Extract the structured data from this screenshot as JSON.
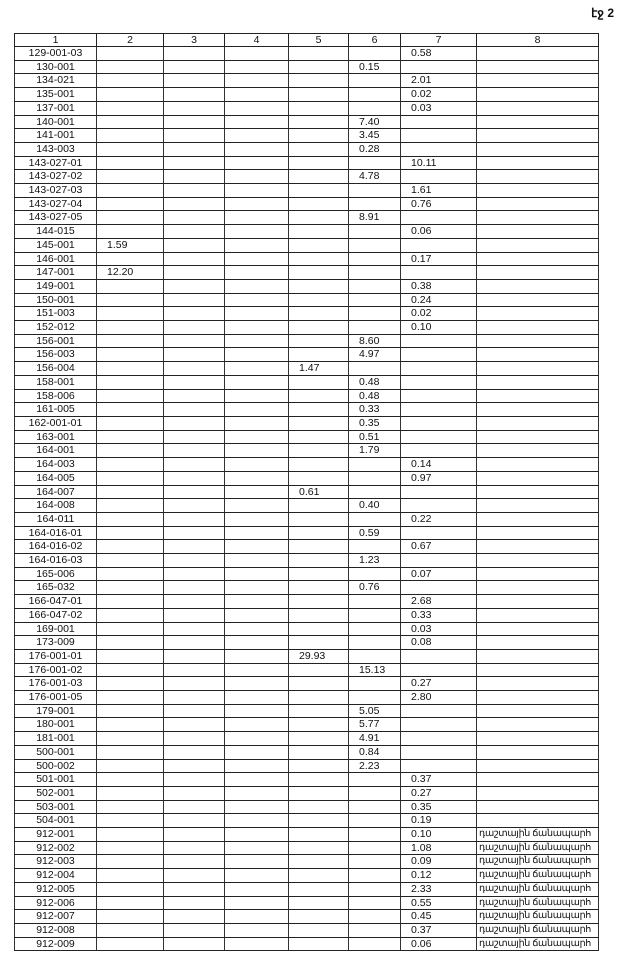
{
  "page_label": "էջ 2",
  "columns": [
    "1",
    "2",
    "3",
    "4",
    "5",
    "6",
    "7",
    "8"
  ],
  "rows": [
    {
      "id": "129-001-03",
      "c7": "0.58"
    },
    {
      "id": "130-001",
      "c6": "0.15"
    },
    {
      "id": "134-021",
      "c7": "2.01"
    },
    {
      "id": "135-001",
      "c7": "0.02"
    },
    {
      "id": "137-001",
      "c7": "0.03"
    },
    {
      "id": "140-001",
      "c6": "7.40"
    },
    {
      "id": "141-001",
      "c6": "3.45"
    },
    {
      "id": "143-003",
      "c6": "0.28"
    },
    {
      "id": "143-027-01",
      "c7": "10.11"
    },
    {
      "id": "143-027-02",
      "c6": "4.78"
    },
    {
      "id": "143-027-03",
      "c7": "1.61"
    },
    {
      "id": "143-027-04",
      "c7": "0.76"
    },
    {
      "id": "143-027-05",
      "c6": "8.91"
    },
    {
      "id": "144-015",
      "c7": "0.06"
    },
    {
      "id": "145-001",
      "c2": "1.59"
    },
    {
      "id": "146-001",
      "c7": "0.17"
    },
    {
      "id": "147-001",
      "c2": "12.20"
    },
    {
      "id": "149-001",
      "c7": "0.38"
    },
    {
      "id": "150-001",
      "c7": "0.24"
    },
    {
      "id": "151-003",
      "c7": "0.02"
    },
    {
      "id": "152-012",
      "c7": "0.10"
    },
    {
      "id": "156-001",
      "c6": "8.60"
    },
    {
      "id": "156-003",
      "c6": "4.97"
    },
    {
      "id": "156-004",
      "c5": "1.47"
    },
    {
      "id": "158-001",
      "c6": "0.48"
    },
    {
      "id": "158-006",
      "c6": "0.48"
    },
    {
      "id": "161-005",
      "c6": "0.33"
    },
    {
      "id": "162-001-01",
      "c6": "0.35"
    },
    {
      "id": "163-001",
      "c6": "0.51"
    },
    {
      "id": "164-001",
      "c6": "1.79"
    },
    {
      "id": "164-003",
      "c7": "0.14"
    },
    {
      "id": "164-005",
      "c7": "0.97"
    },
    {
      "id": "164-007",
      "c5": "0.61"
    },
    {
      "id": "164-008",
      "c6": "0.40"
    },
    {
      "id": "164-011",
      "c7": "0.22"
    },
    {
      "id": "164-016-01",
      "c6": "0.59"
    },
    {
      "id": "164-016-02",
      "c7": "0.67"
    },
    {
      "id": "164-016-03",
      "c6": "1.23"
    },
    {
      "id": "165-006",
      "c7": "0.07"
    },
    {
      "id": "165-032",
      "c6": "0.76"
    },
    {
      "id": "166-047-01",
      "c7": "2.68"
    },
    {
      "id": "166-047-02",
      "c7": "0.33"
    },
    {
      "id": "169-001",
      "c7": "0.03"
    },
    {
      "id": "173-009",
      "c7": "0.08"
    },
    {
      "id": "176-001-01",
      "c5": "29.93"
    },
    {
      "id": "176-001-02",
      "c6": "15.13"
    },
    {
      "id": "176-001-03",
      "c7": "0.27"
    },
    {
      "id": "176-001-05",
      "c7": "2.80"
    },
    {
      "id": "179-001",
      "c6": "5.05"
    },
    {
      "id": "180-001",
      "c6": "5.77"
    },
    {
      "id": "181-001",
      "c6": "4.91"
    },
    {
      "id": "500-001",
      "c6": "0.84"
    },
    {
      "id": "500-002",
      "c6": "2.23"
    },
    {
      "id": "501-001",
      "c7": "0.37"
    },
    {
      "id": "502-001",
      "c7": "0.27"
    },
    {
      "id": "503-001",
      "c7": "0.35"
    },
    {
      "id": "504-001",
      "c7": "0.19"
    },
    {
      "id": "912-001",
      "c7": "0.10",
      "c8": "դաշտային ճանապարհ"
    },
    {
      "id": "912-002",
      "c7": "1.08",
      "c8": "դաշտային ճանապարհ"
    },
    {
      "id": "912-003",
      "c7": "0.09",
      "c8": "դաշտային ճանապարհ"
    },
    {
      "id": "912-004",
      "c7": "0.12",
      "c8": "դաշտային ճանապարհ"
    },
    {
      "id": "912-005",
      "c7": "2.33",
      "c8": "դաշտային ճանապարհ"
    },
    {
      "id": "912-006",
      "c7": "0.55",
      "c8": "դաշտային ճանապարհ"
    },
    {
      "id": "912-007",
      "c7": "0.45",
      "c8": "դաշտային ճանապարհ"
    },
    {
      "id": "912-008",
      "c7": "0.37",
      "c8": "դաշտային ճանապարհ"
    },
    {
      "id": "912-009",
      "c7": "0.06",
      "c8": "դաշտային ճանապարհ"
    }
  ]
}
